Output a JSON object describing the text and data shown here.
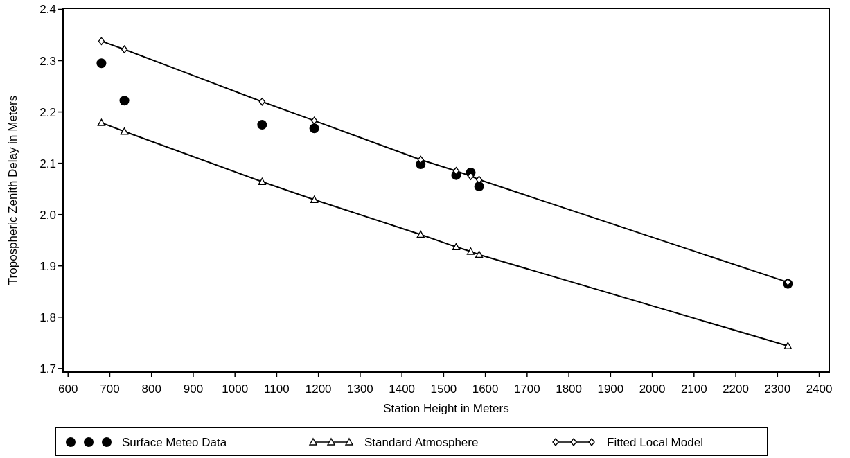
{
  "chart_data": {
    "type": "line",
    "xlabel": "Station Height in Meters",
    "ylabel": "Tropospheric Zenith Delay in Meters",
    "xlim": [
      588,
      2424
    ],
    "ylim": [
      1.693,
      2.402
    ],
    "xticks": [
      600,
      700,
      800,
      900,
      1000,
      1100,
      1200,
      1300,
      1400,
      1500,
      1600,
      1700,
      1800,
      1900,
      2000,
      2100,
      2200,
      2300,
      2400
    ],
    "yticks": [
      {
        "value": 1.7,
        "label": "1.7"
      },
      {
        "value": 1.8,
        "label": "1.8"
      },
      {
        "value": 1.9,
        "label": "1.9"
      },
      {
        "value": 2.0,
        "label": "2.0"
      },
      {
        "value": 2.1,
        "label": "2.1"
      },
      {
        "value": 2.2,
        "label": "2.2"
      },
      {
        "value": 2.3,
        "label": "2.3"
      },
      {
        "value": 2.4,
        "label": "2.4"
      }
    ],
    "legend": "bottom",
    "series": [
      {
        "name": "Surface Meteo Data",
        "type": "scatter",
        "marker": "circle",
        "color": "#000000",
        "x": [
          680,
          735,
          1065,
          1190,
          1445,
          1530,
          1565,
          1585,
          2325
        ],
        "values": [
          2.295,
          2.222,
          2.175,
          2.168,
          2.098,
          2.077,
          2.082,
          2.055,
          1.865
        ]
      },
      {
        "name": "Standard Atmosphere",
        "marker": "triangle",
        "color": "#000000",
        "x": [
          680,
          735,
          1065,
          1190,
          1445,
          1530,
          1565,
          1585,
          2325
        ],
        "values": [
          2.179,
          2.162,
          2.064,
          2.029,
          1.961,
          1.937,
          1.928,
          1.922,
          1.744
        ]
      },
      {
        "name": "Fitted Local Model",
        "marker": "diamond",
        "color": "#000000",
        "x": [
          680,
          735,
          1065,
          1190,
          1445,
          1530,
          1565,
          1585,
          2325
        ],
        "values": [
          2.338,
          2.322,
          2.22,
          2.183,
          2.107,
          2.085,
          2.075,
          2.068,
          1.868
        ]
      }
    ]
  }
}
